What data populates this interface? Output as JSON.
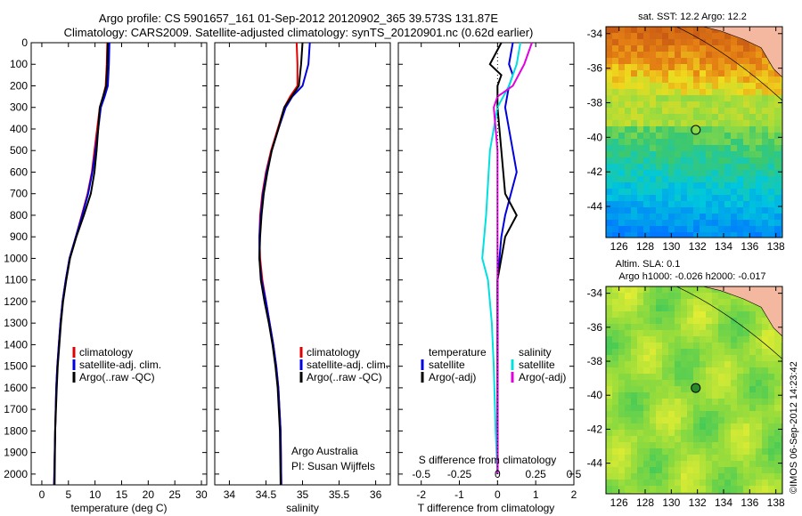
{
  "header": {
    "line1": "Argo profile: CS 5901657_161 01-Sep-2012 20120902_365 39.573S 131.87E",
    "line2": "Climatology: CARS2009. Satellite-adjusted climatology: synTS_20120901.nc (0.62d earlier)"
  },
  "legend": {
    "climatology": "climatology",
    "satellite": "satellite-adj. clim.",
    "argo": "Argo(..raw -QC)",
    "temperature": "temperature",
    "salinity": "salinity",
    "sat_short": "satellite",
    "argo_adj": "Argo(-adj)"
  },
  "annotations": {
    "argo_australia": "Argo Australia",
    "pi": "PI: Susan Wijffels",
    "s_diff": "S difference from climatology",
    "imos": "©IMOS 06-Sep-2012 14:23:42"
  },
  "maps": {
    "sst_title": "sat. SST: 12.2 Argo: 12.2",
    "sla_title1": "Altim. SLA: 0.1",
    "sla_title2": "Argo h1000: -0.026 h2000: -0.017",
    "lon_ticks": [
      "126",
      "128",
      "130",
      "132",
      "134",
      "136",
      "138"
    ],
    "lat_ticks": [
      "-34",
      "-36",
      "-38",
      "-40",
      "-42",
      "-44"
    ],
    "lon_range": [
      125,
      138.5
    ],
    "lat_range": [
      -33.6,
      -45.8
    ],
    "float_lon": 131.87,
    "float_lat": -39.573
  },
  "colors": {
    "climatology": "#e00000",
    "satellite": "#0000e0",
    "argo": "#000000",
    "sal_satellite": "#00e0e0",
    "sal_argo": "#e000e0",
    "land": "#f4b8a0"
  },
  "chart_data": [
    {
      "type": "line",
      "xlabel": "temperature (deg C)",
      "xlim": [
        -2,
        31
      ],
      "ylim": [
        2050,
        0
      ],
      "xticks": [
        "0",
        "5",
        "10",
        "15",
        "20",
        "25",
        "30"
      ],
      "yticks": [
        "0",
        "100",
        "200",
        "300",
        "400",
        "500",
        "600",
        "700",
        "800",
        "900",
        "1000",
        "1100",
        "1200",
        "1300",
        "1400",
        "1500",
        "1600",
        "1700",
        "1800",
        "1900",
        "2000"
      ],
      "series": [
        {
          "name": "climatology",
          "x": [
            12.3,
            12.2,
            12.0,
            11.5,
            10.9,
            10.4,
            9.9,
            9.4,
            8.6,
            7.5,
            6.4,
            5.2,
            4.5,
            3.9,
            3.5,
            3.2,
            2.9,
            2.7,
            2.5,
            2.3
          ],
          "y": [
            0,
            100,
            200,
            250,
            300,
            400,
            500,
            600,
            700,
            800,
            900,
            1000,
            1100,
            1200,
            1300,
            1400,
            1500,
            1600,
            1800,
            2050
          ]
        },
        {
          "name": "satellite-adj. clim.",
          "x": [
            12.7,
            12.6,
            12.4,
            11.8,
            11.1,
            10.6,
            10.1,
            9.5,
            8.7,
            7.6,
            6.4,
            5.2,
            4.5,
            3.9,
            3.5,
            3.2,
            2.9,
            2.7,
            2.5,
            2.3
          ],
          "y": [
            0,
            100,
            200,
            250,
            300,
            400,
            500,
            600,
            700,
            800,
            900,
            1000,
            1100,
            1200,
            1300,
            1400,
            1500,
            1600,
            1800,
            2050
          ]
        },
        {
          "name": "Argo(..raw -QC)",
          "x": [
            12.4,
            12.3,
            12.1,
            11.5,
            10.9,
            10.6,
            10.3,
            9.9,
            9.2,
            7.9,
            6.5,
            5.3,
            4.6,
            4.0,
            3.6,
            3.3,
            3.0,
            2.8,
            2.5,
            2.4
          ],
          "y": [
            0,
            100,
            200,
            250,
            300,
            400,
            500,
            600,
            700,
            800,
            900,
            1000,
            1100,
            1200,
            1300,
            1400,
            1500,
            1600,
            1800,
            2050
          ]
        }
      ]
    },
    {
      "type": "line",
      "xlabel": "salinity",
      "xlim": [
        33.8,
        36.2
      ],
      "ylim": [
        2050,
        0
      ],
      "xticks": [
        "34",
        "34.5",
        "35",
        "35.5",
        "36"
      ],
      "series": [
        {
          "name": "climatology",
          "x": [
            34.92,
            34.93,
            34.93,
            34.83,
            34.75,
            34.66,
            34.57,
            34.5,
            34.45,
            34.42,
            34.41,
            34.42,
            34.45,
            34.5,
            34.55,
            34.6,
            34.64,
            34.67,
            34.7,
            34.71
          ],
          "y": [
            0,
            100,
            200,
            250,
            300,
            400,
            500,
            600,
            700,
            800,
            900,
            1000,
            1100,
            1200,
            1300,
            1400,
            1500,
            1600,
            1800,
            2050
          ]
        },
        {
          "name": "satellite-adj. clim.",
          "x": [
            35.1,
            35.08,
            35.0,
            34.86,
            34.77,
            34.67,
            34.58,
            34.51,
            34.46,
            34.43,
            34.41,
            34.41,
            34.44,
            34.5,
            34.55,
            34.6,
            34.64,
            34.67,
            34.7,
            34.71
          ],
          "y": [
            0,
            100,
            200,
            250,
            300,
            400,
            500,
            600,
            700,
            800,
            900,
            1000,
            1100,
            1200,
            1300,
            1400,
            1500,
            1600,
            1800,
            2050
          ]
        },
        {
          "name": "Argo(..raw -QC)",
          "x": [
            35.0,
            34.98,
            34.95,
            34.85,
            34.75,
            34.67,
            34.58,
            34.52,
            34.47,
            34.44,
            34.42,
            34.41,
            34.43,
            34.48,
            34.54,
            34.59,
            34.63,
            34.66,
            34.69,
            34.7
          ],
          "y": [
            0,
            100,
            200,
            250,
            300,
            400,
            500,
            600,
            700,
            800,
            900,
            1000,
            1100,
            1200,
            1300,
            1400,
            1500,
            1600,
            1800,
            2050
          ]
        }
      ]
    },
    {
      "type": "line",
      "xlabel": "T difference from climatology",
      "xlim": [
        -2.6,
        2.0
      ],
      "ylim": [
        2050,
        0
      ],
      "xticks": [
        "-2",
        "-1",
        "0",
        "1",
        "2"
      ],
      "s_ticks": [
        "-0.5",
        "-0.25",
        "0",
        "0.25",
        "0.5"
      ],
      "series": [
        {
          "name": "temperature satellite",
          "x": [
            0.4,
            0.3,
            0.4,
            0.3,
            0.2,
            0.3,
            0.5,
            0.2,
            0.1,
            0.05,
            0.0,
            0.0,
            0.0,
            0.0,
            0.0
          ],
          "y": [
            0,
            100,
            150,
            200,
            300,
            400,
            600,
            800,
            900,
            1000,
            1100,
            1200,
            1400,
            1700,
            2000
          ]
        },
        {
          "name": "temperature Argo(-adj)",
          "x": [
            0.1,
            -0.2,
            0.1,
            0.0,
            0.0,
            0.1,
            0.2,
            0.5,
            0.2,
            0.1,
            0.0,
            0.0,
            0.0,
            0.0
          ],
          "y": [
            0,
            100,
            150,
            200,
            300,
            500,
            700,
            800,
            900,
            1000,
            1100,
            1300,
            1600,
            2000
          ]
        },
        {
          "name": "salinity satellite",
          "x": [
            0.6,
            0.5,
            0.3,
            0.0,
            -0.2,
            -0.3,
            -0.4,
            -0.25,
            -0.15,
            -0.1,
            -0.05,
            0.0
          ],
          "y": [
            0,
            100,
            200,
            300,
            500,
            800,
            1000,
            1100,
            1300,
            1500,
            1800,
            2000
          ]
        },
        {
          "name": "salinity Argo(-adj)",
          "x": [
            0.9,
            0.7,
            0.4,
            0.0,
            -0.1,
            0.0,
            0.0
          ],
          "y": [
            0,
            100,
            200,
            250,
            300,
            500,
            2000
          ]
        }
      ]
    }
  ]
}
